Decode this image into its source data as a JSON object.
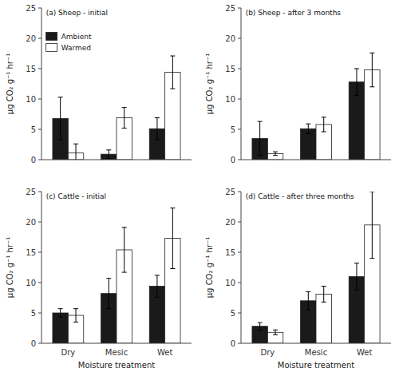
{
  "chart_data": [
    {
      "type": "bar",
      "title": "(a) Sheep - initial",
      "categories": [
        "Dry",
        "Mesic",
        "Wet"
      ],
      "series": [
        {
          "name": "Ambient",
          "color": "#1a1a1a",
          "values": [
            6.8,
            0.9,
            5.1
          ],
          "errors": [
            3.5,
            0.7,
            1.8
          ]
        },
        {
          "name": "Warmed",
          "color": "#ffffff",
          "values": [
            1.1,
            6.9,
            14.4
          ],
          "errors": [
            1.5,
            1.7,
            2.7
          ]
        }
      ],
      "ylabel": "μg CO₂ g⁻¹ hr⁻¹",
      "ylim": [
        0,
        25
      ],
      "yticks": [
        0,
        5,
        10,
        15,
        20,
        25
      ],
      "grid": false,
      "legend": "upper left",
      "tick_labels": "y"
    },
    {
      "type": "bar",
      "title": "(b) Sheep - after 3 months",
      "categories": [
        "Dry",
        "Mesic",
        "Wet"
      ],
      "series": [
        {
          "color": "#1a1a1a",
          "values": [
            3.5,
            5.1,
            12.8
          ],
          "errors": [
            2.8,
            0.8,
            2.2
          ]
        },
        {
          "color": "#ffffff",
          "values": [
            1.0,
            5.8,
            14.8
          ],
          "errors": [
            0.3,
            1.2,
            2.8
          ]
        }
      ],
      "ylabel": "μg CO₂ g⁻¹ hr⁻¹",
      "ylim": [
        0,
        25
      ],
      "yticks": [
        0,
        5,
        10,
        15,
        20,
        25
      ],
      "grid": false,
      "tick_labels": "y"
    },
    {
      "type": "bar",
      "title": "(c) Cattle - initial",
      "categories": [
        "Dry",
        "Mesic",
        "Wet"
      ],
      "series": [
        {
          "color": "#1a1a1a",
          "values": [
            5.0,
            8.2,
            9.4
          ],
          "errors": [
            0.7,
            2.5,
            1.8
          ]
        },
        {
          "color": "#ffffff",
          "values": [
            4.6,
            15.4,
            17.3
          ],
          "errors": [
            1.1,
            3.7,
            5.0
          ]
        }
      ],
      "xlabel": "Moisture treatment",
      "ylabel": "μg CO₂ g⁻¹ hr⁻¹",
      "ylim": [
        0,
        25
      ],
      "yticks": [
        0,
        5,
        10,
        15,
        20,
        25
      ],
      "grid": false
    },
    {
      "type": "bar",
      "title": "(d) Cattle - after three months",
      "categories": [
        "Dry",
        "Mesic",
        "Wet"
      ],
      "series": [
        {
          "color": "#1a1a1a",
          "values": [
            2.8,
            7.0,
            11.0
          ],
          "errors": [
            0.6,
            1.5,
            2.2
          ]
        },
        {
          "color": "#ffffff",
          "values": [
            1.8,
            8.1,
            19.5
          ],
          "errors": [
            0.4,
            1.3,
            5.5
          ]
        }
      ],
      "xlabel": "Moisture treatment",
      "ylabel": "μg CO₂ g⁻¹ hr⁻¹",
      "ylim": [
        0,
        25
      ],
      "yticks": [
        0,
        5,
        10,
        15,
        20,
        25
      ],
      "grid": false
    }
  ]
}
